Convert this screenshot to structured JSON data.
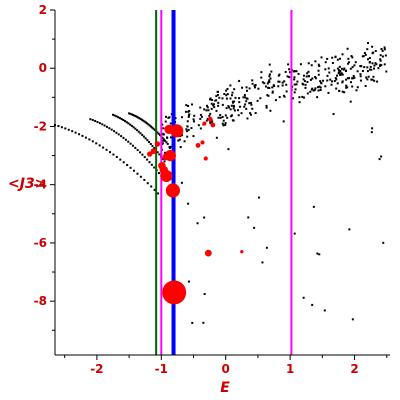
{
  "chart_data": {
    "type": "scatter",
    "xlabel": "E",
    "ylabel": "<J3>",
    "xlim": [
      -2.65,
      2.55
    ],
    "ylim": [
      -9.85,
      2.0
    ],
    "x_ticks": [
      -2,
      -1,
      0,
      1,
      2
    ],
    "y_ticks": [
      2,
      0,
      -2,
      -4,
      -6,
      -8
    ],
    "x_tick_labels": [
      "-2",
      "-1",
      "0",
      "1",
      "2"
    ],
    "y_tick_labels": [
      "2",
      "0",
      "-2",
      "-4",
      "-6",
      "-8"
    ],
    "grid": false,
    "legend": "none",
    "vertical_lines": [
      {
        "x": -1.08,
        "color": "#006400"
      },
      {
        "x": -1.0,
        "color": "#ff00ff"
      },
      {
        "x": -0.81,
        "color": "#0000ff"
      },
      {
        "x": 1.02,
        "color": "#ff00ff"
      }
    ],
    "highlighted_points": [
      {
        "x": -0.8,
        "y": -7.7,
        "weight": 1.0
      },
      {
        "x": -0.82,
        "y": -4.2,
        "weight": 0.35
      },
      {
        "x": -0.92,
        "y": -3.7,
        "weight": 0.25
      },
      {
        "x": -0.86,
        "y": -3.0,
        "weight": 0.22
      },
      {
        "x": -0.76,
        "y": -2.15,
        "weight": 0.3
      },
      {
        "x": -0.88,
        "y": -2.1,
        "weight": 0.15
      },
      {
        "x": -0.99,
        "y": -3.35,
        "weight": 0.1
      },
      {
        "x": -0.96,
        "y": -3.5,
        "weight": 0.12
      },
      {
        "x": -0.93,
        "y": -3.05,
        "weight": 0.08
      },
      {
        "x": -1.12,
        "y": -2.85,
        "weight": 0.06
      },
      {
        "x": -1.18,
        "y": -2.95,
        "weight": 0.05
      },
      {
        "x": -1.06,
        "y": -2.6,
        "weight": 0.05
      },
      {
        "x": -0.27,
        "y": -6.35,
        "weight": 0.08
      },
      {
        "x": -0.2,
        "y": -1.95,
        "weight": 0.04
      },
      {
        "x": -0.24,
        "y": -1.75,
        "weight": 0.04
      },
      {
        "x": -0.43,
        "y": -2.65,
        "weight": 0.04
      },
      {
        "x": -0.36,
        "y": -2.55,
        "weight": 0.03
      },
      {
        "x": -0.31,
        "y": -3.1,
        "weight": 0.03
      },
      {
        "x": -0.33,
        "y": -1.9,
        "weight": 0.03
      },
      {
        "x": 0.25,
        "y": -6.3,
        "weight": 0.02
      }
    ],
    "colors": {
      "points": "#000000",
      "highlight": "#ff0000",
      "axis": "#000000",
      "labels": "#cc0000"
    }
  }
}
